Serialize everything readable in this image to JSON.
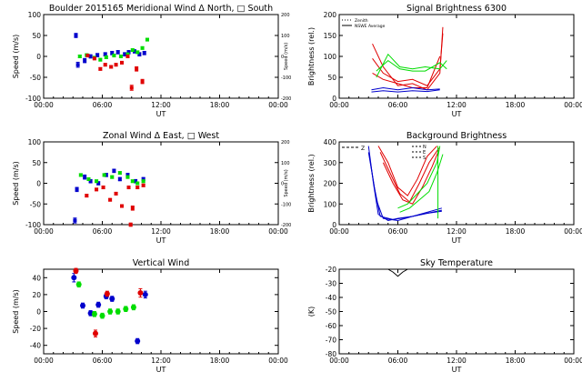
{
  "colors": {
    "red": "#e00000",
    "green": "#00dd00",
    "blue": "#0000cc",
    "black": "#000000"
  },
  "x_ticks": [
    "00:00",
    "06:00",
    "12:00",
    "18:00",
    "00:00"
  ],
  "x_label": "UT",
  "chart_data": [
    {
      "id": "meridional",
      "type": "scatter",
      "title": "Boulder  2015165    Meridional Wind   Δ North, □ South",
      "ylabel": "Speed (m/s)",
      "ylabel_right": "Speed (m/s)",
      "xlim": [
        0,
        24
      ],
      "ylim": [
        -100,
        100
      ],
      "yticks": [
        "100",
        "50",
        "0",
        "-50",
        "-100"
      ],
      "yticks_values": [
        100,
        50,
        0,
        -50,
        -100
      ],
      "right_ylim": [
        -200,
        200
      ],
      "right_yticks": [
        "200",
        "100",
        "0",
        "-100",
        "-200"
      ],
      "right_yticks_values": [
        200,
        100,
        0,
        -100,
        -200
      ],
      "series": [
        {
          "name": "blue",
          "color": "blue",
          "points": [
            [
              3.3,
              50,
              5
            ],
            [
              3.5,
              -20,
              6
            ],
            [
              4.2,
              -10,
              5
            ],
            [
              4.8,
              0,
              4
            ],
            [
              5.5,
              3,
              4
            ],
            [
              6.3,
              5,
              4
            ],
            [
              7.0,
              8,
              4
            ],
            [
              7.6,
              10,
              4
            ],
            [
              8.3,
              5,
              4
            ],
            [
              8.7,
              10,
              4
            ],
            [
              9.3,
              12,
              4
            ],
            [
              9.8,
              5,
              4
            ],
            [
              10.3,
              8,
              4
            ]
          ]
        },
        {
          "name": "green",
          "color": "green",
          "points": [
            [
              3.7,
              0,
              3
            ],
            [
              4.4,
              3,
              3
            ],
            [
              5.2,
              -3,
              3
            ],
            [
              5.8,
              -8,
              3
            ],
            [
              6.4,
              -2,
              3
            ],
            [
              7.2,
              2,
              3
            ],
            [
              7.9,
              0,
              3
            ],
            [
              8.6,
              5,
              3
            ],
            [
              9.1,
              15,
              3
            ],
            [
              9.6,
              10,
              3
            ],
            [
              10.1,
              20,
              3
            ],
            [
              10.6,
              40,
              3
            ]
          ]
        },
        {
          "name": "red",
          "color": "red",
          "points": [
            [
              4.5,
              2,
              3
            ],
            [
              5.2,
              -5,
              3
            ],
            [
              5.8,
              -30,
              3
            ],
            [
              6.3,
              -20,
              3
            ],
            [
              6.9,
              -25,
              3
            ],
            [
              7.4,
              -20,
              3
            ],
            [
              8.0,
              -15,
              3
            ],
            [
              8.6,
              0,
              3
            ],
            [
              9.0,
              -75,
              6
            ],
            [
              9.5,
              -30,
              5
            ],
            [
              10.1,
              -60,
              5
            ]
          ]
        }
      ]
    },
    {
      "id": "signal",
      "type": "line",
      "title": "Signal Brightness      6300",
      "ylabel": "Brightness (rel.)",
      "xlim": [
        0,
        24
      ],
      "ylim": [
        0,
        200
      ],
      "yticks": [
        "200",
        "150",
        "100",
        "50",
        "0"
      ],
      "yticks_values": [
        200,
        150,
        100,
        50,
        0
      ],
      "legend": [
        {
          "label": "Zenith",
          "style": "dotted"
        },
        {
          "label": "NSWE Average",
          "style": "solid"
        }
      ],
      "series": [
        {
          "name": "red-1",
          "color": "red",
          "x": [
            3.4,
            4.5,
            6.0,
            7.5,
            9.0,
            10.3,
            10.6
          ],
          "y": [
            130,
            75,
            30,
            35,
            20,
            60,
            170
          ]
        },
        {
          "name": "red-2",
          "color": "red",
          "x": [
            3.4,
            4.5,
            6.0,
            7.5,
            9.0,
            10.3,
            10.6
          ],
          "y": [
            95,
            60,
            40,
            45,
            30,
            70,
            155
          ]
        },
        {
          "name": "red-3",
          "color": "red",
          "x": [
            3.4,
            4.5,
            6.0,
            7.5,
            9.0,
            10.3
          ],
          "y": [
            60,
            45,
            35,
            25,
            25,
            100
          ]
        },
        {
          "name": "green-1",
          "color": "green",
          "x": [
            3.8,
            5.0,
            6.2,
            7.5,
            8.8,
            10.3,
            11.0
          ],
          "y": [
            50,
            105,
            75,
            70,
            75,
            70,
            90
          ]
        },
        {
          "name": "green-2",
          "color": "green",
          "x": [
            3.8,
            5.0,
            6.2,
            7.5,
            8.8,
            10.3,
            11.0
          ],
          "y": [
            65,
            90,
            70,
            65,
            65,
            85,
            70
          ]
        },
        {
          "name": "blue-1",
          "color": "blue",
          "x": [
            3.3,
            4.5,
            6.0,
            7.5,
            9.0,
            10.3
          ],
          "y": [
            20,
            25,
            20,
            25,
            20,
            22
          ]
        },
        {
          "name": "blue-2",
          "color": "blue",
          "x": [
            3.3,
            4.5,
            6.0,
            7.5,
            9.0,
            10.3
          ],
          "y": [
            15,
            18,
            15,
            18,
            16,
            20
          ]
        }
      ]
    },
    {
      "id": "zonal",
      "type": "scatter",
      "title": "Zonal Wind     Δ East, □ West",
      "ylabel": "Speed (m/s)",
      "ylabel_right": "Speed (m/s)",
      "xlim": [
        0,
        24
      ],
      "ylim": [
        -100,
        100
      ],
      "yticks": [
        "100",
        "50",
        "0",
        "-50",
        "-100"
      ],
      "yticks_values": [
        100,
        50,
        0,
        -50,
        -100
      ],
      "right_ylim": [
        -200,
        200
      ],
      "right_yticks": [
        "200",
        "100",
        "0",
        "-100",
        "-200"
      ],
      "right_yticks_values": [
        200,
        100,
        0,
        -100,
        -200
      ],
      "series": [
        {
          "name": "blue",
          "color": "blue",
          "points": [
            [
              3.2,
              -90,
              6
            ],
            [
              3.4,
              -15,
              5
            ],
            [
              4.2,
              15,
              5
            ],
            [
              4.8,
              5,
              4
            ],
            [
              5.6,
              0,
              4
            ],
            [
              6.4,
              20,
              4
            ],
            [
              7.2,
              30,
              4
            ],
            [
              7.8,
              10,
              4
            ],
            [
              8.6,
              20,
              4
            ],
            [
              9.4,
              5,
              4
            ],
            [
              10.2,
              10,
              4
            ]
          ]
        },
        {
          "name": "green",
          "color": "green",
          "points": [
            [
              3.8,
              20,
              3
            ],
            [
              4.6,
              10,
              3
            ],
            [
              5.4,
              5,
              3
            ],
            [
              6.2,
              20,
              3
            ],
            [
              7.0,
              15,
              3
            ],
            [
              7.8,
              25,
              3
            ],
            [
              8.6,
              15,
              3
            ],
            [
              9.1,
              5,
              3
            ],
            [
              9.6,
              0,
              3
            ],
            [
              10.2,
              5,
              3
            ]
          ]
        },
        {
          "name": "red",
          "color": "red",
          "points": [
            [
              4.4,
              -30,
              3
            ],
            [
              5.4,
              -15,
              3
            ],
            [
              6.1,
              -10,
              3
            ],
            [
              6.8,
              -40,
              3
            ],
            [
              7.4,
              -25,
              3
            ],
            [
              8.0,
              -55,
              3
            ],
            [
              8.7,
              -10,
              3
            ],
            [
              9.1,
              -60,
              5
            ],
            [
              9.6,
              -10,
              3
            ],
            [
              10.2,
              -5,
              3
            ],
            [
              8.9,
              -100,
              4
            ]
          ]
        }
      ]
    },
    {
      "id": "background",
      "type": "line",
      "title": "Background Brightness",
      "ylabel": "Brightness (rel.)",
      "xlim": [
        0,
        24
      ],
      "ylim": [
        0,
        400
      ],
      "yticks": [
        "400",
        "300",
        "200",
        "100",
        "0"
      ],
      "yticks_values": [
        400,
        300,
        200,
        100,
        0
      ],
      "annotations": [
        "Z",
        "N",
        "E",
        "S"
      ],
      "series": [
        {
          "name": "blue-1",
          "color": "blue",
          "x": [
            3.0,
            3.5,
            4.0,
            5.0,
            6.0,
            7.5,
            9.0,
            10.5
          ],
          "y": [
            380,
            200,
            50,
            20,
            30,
            40,
            60,
            80
          ]
        },
        {
          "name": "blue-2",
          "color": "blue",
          "x": [
            3.0,
            3.6,
            4.2,
            5.5,
            7.0,
            8.5,
            10.5
          ],
          "y": [
            350,
            180,
            40,
            25,
            35,
            50,
            70
          ]
        },
        {
          "name": "blue-3",
          "color": "blue",
          "x": [
            3.2,
            3.8,
            4.5,
            6.0,
            7.5,
            9.0,
            10.5
          ],
          "y": [
            300,
            120,
            30,
            20,
            40,
            55,
            65
          ]
        },
        {
          "name": "red-1",
          "color": "red",
          "x": [
            4.0,
            5.0,
            6.0,
            7.0,
            8.0,
            9.0,
            10.0
          ],
          "y": [
            380,
            300,
            180,
            140,
            220,
            330,
            380
          ]
        },
        {
          "name": "red-2",
          "color": "red",
          "x": [
            4.2,
            5.2,
            6.2,
            7.2,
            8.2,
            9.2,
            10.2
          ],
          "y": [
            350,
            250,
            150,
            110,
            200,
            300,
            370
          ]
        },
        {
          "name": "red-3",
          "color": "red",
          "x": [
            4.5,
            5.5,
            6.5,
            7.5,
            8.5,
            9.5,
            10.2
          ],
          "y": [
            300,
            200,
            120,
            100,
            180,
            280,
            360
          ]
        },
        {
          "name": "green-1",
          "color": "green",
          "x": [
            6.0,
            7.0,
            8.0,
            9.0,
            10.0,
            10.3
          ],
          "y": [
            80,
            100,
            150,
            200,
            300,
            380
          ]
        },
        {
          "name": "green-2",
          "color": "green",
          "x": [
            6.2,
            7.2,
            8.2,
            9.2,
            10.0,
            10.6
          ],
          "y": [
            60,
            80,
            120,
            160,
            250,
            340
          ]
        },
        {
          "name": "green-3",
          "color": "green",
          "x": [
            10.1,
            10.1
          ],
          "y": [
            30,
            380
          ]
        }
      ]
    },
    {
      "id": "vertical",
      "type": "scatter",
      "title": "Vertical Wind",
      "ylabel": "Speed (m/s)",
      "xlim": [
        0,
        24
      ],
      "ylim": [
        -50,
        50
      ],
      "yticks": [
        "40",
        "20",
        "0",
        "-20",
        "-40"
      ],
      "yticks_values": [
        40,
        20,
        0,
        -20,
        -40
      ],
      "series": [
        {
          "name": "blue",
          "color": "blue",
          "points": [
            [
              3.1,
              40,
              5
            ],
            [
              4.0,
              7,
              3
            ],
            [
              4.8,
              -2,
              3
            ],
            [
              5.6,
              8,
              3
            ],
            [
              6.4,
              18,
              3
            ],
            [
              7.0,
              15,
              3
            ],
            [
              9.6,
              -35,
              3
            ],
            [
              10.4,
              20,
              4
            ]
          ]
        },
        {
          "name": "green",
          "color": "green",
          "points": [
            [
              3.6,
              32,
              3
            ],
            [
              5.2,
              -3,
              3
            ],
            [
              6.0,
              -5,
              3
            ],
            [
              6.8,
              0,
              3
            ],
            [
              7.6,
              0,
              3
            ],
            [
              8.4,
              3,
              3
            ],
            [
              9.2,
              5,
              3
            ]
          ]
        },
        {
          "name": "red",
          "color": "red",
          "points": [
            [
              3.3,
              48,
              3
            ],
            [
              5.3,
              -26,
              4
            ],
            [
              6.5,
              21,
              3
            ],
            [
              9.9,
              22,
              5
            ]
          ]
        }
      ]
    },
    {
      "id": "sky",
      "type": "line",
      "title": "Sky Temperature",
      "ylabel": "(K)",
      "xlim": [
        0,
        24
      ],
      "ylim": [
        -80,
        -20
      ],
      "yticks": [
        "-20",
        "-30",
        "-40",
        "-50",
        "-60",
        "-70",
        "-80"
      ],
      "yticks_values": [
        -20,
        -30,
        -40,
        -50,
        -60,
        -70,
        -80
      ],
      "series": [
        {
          "name": "sky",
          "color": "black",
          "x": [
            5.0,
            5.5,
            6.0,
            6.5,
            7.0
          ],
          "y": [
            -20,
            -22,
            -25,
            -22,
            -20
          ]
        }
      ]
    }
  ]
}
